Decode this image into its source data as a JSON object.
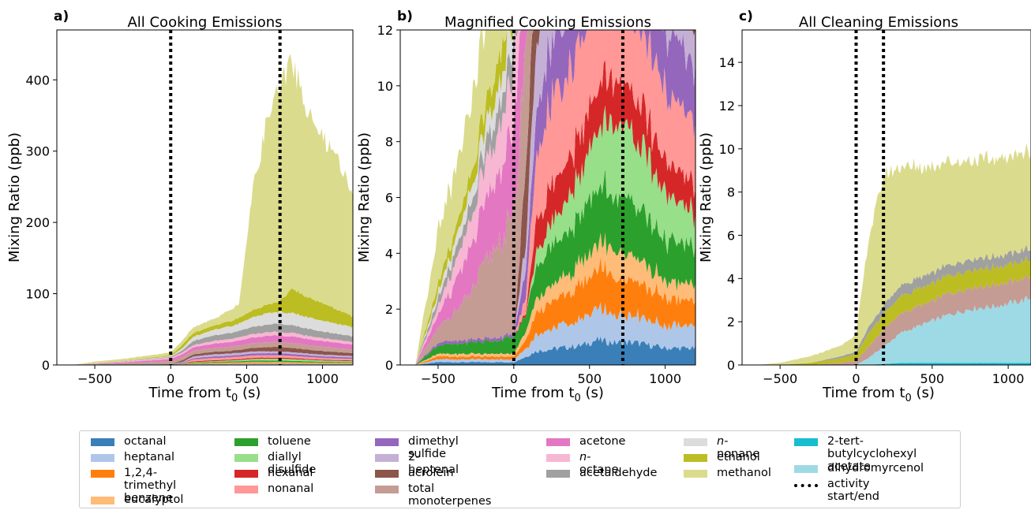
{
  "panels": [
    {
      "letter": "a)",
      "title": "All Cooking Emissions",
      "xlabel": "Time from t",
      "xlabel_sub": "0",
      "xlabel_unit": " (s)",
      "ylabel": "Mixing Ratio (ppb)",
      "xlim": [
        -750,
        1200
      ],
      "ylim": [
        0,
        470
      ],
      "xticks": [
        -500,
        0,
        500,
        1000
      ],
      "yticks": [
        0,
        100,
        200,
        300,
        400
      ],
      "activity_lines": [
        0,
        720
      ]
    },
    {
      "letter": "b)",
      "title": "Magnified Cooking Emissions",
      "xlabel": "Time from t",
      "xlabel_sub": "0",
      "xlabel_unit": " (s)",
      "ylabel": "Mixing Ratio (ppb)",
      "xlim": [
        -750,
        1200
      ],
      "ylim": [
        0,
        12
      ],
      "xticks": [
        -500,
        0,
        500,
        1000
      ],
      "yticks": [
        0,
        2,
        4,
        6,
        8,
        10,
        12
      ],
      "activity_lines": [
        0,
        720
      ]
    },
    {
      "letter": "c)",
      "title": "All Cleaning Emissions",
      "xlabel": "Time from t",
      "xlabel_sub": "0",
      "xlabel_unit": " (s)",
      "ylabel": "Mixing Ratio (ppb)",
      "xlim": [
        -750,
        1150
      ],
      "ylim": [
        0,
        15.5
      ],
      "xticks": [
        -500,
        0,
        500,
        1000
      ],
      "yticks": [
        0,
        2,
        4,
        6,
        8,
        10,
        12,
        14
      ],
      "activity_lines": [
        0,
        180
      ]
    }
  ],
  "legend": [
    [
      {
        "label": "octanal",
        "color": "#3a7fb8"
      },
      {
        "label": "heptanal",
        "color": "#aec7e8"
      },
      {
        "label": "1,2,4-trimethyl\nbenzene",
        "color": "#ff7f0e"
      },
      {
        "label": "eucalyptol",
        "color": "#ffbb78"
      }
    ],
    [
      {
        "label": "toluene",
        "color": "#2ca02c"
      },
      {
        "label": "diallyl disulfide",
        "color": "#98df8a"
      },
      {
        "label": "hexanal",
        "color": "#d62728"
      },
      {
        "label": "nonanal",
        "color": "#ff9896"
      }
    ],
    [
      {
        "label": "dimethyl sulfide",
        "color": "#9467bd"
      },
      {
        "label": "2-heptenal",
        "color": "#c5b0d5"
      },
      {
        "label": "acrolein",
        "color": "#8c564b"
      },
      {
        "label": "total monoterpenes",
        "color": "#c49c94"
      }
    ],
    [
      {
        "label": "acetone",
        "color": "#e377c2"
      },
      {
        "label": "n-octane",
        "color": "#f7b6d2",
        "italic_prefix": "n"
      },
      {
        "label": "acetaldehyde",
        "color": "#a0a0a0"
      }
    ],
    [
      {
        "label": "n-nonane",
        "color": "#dcdcdc",
        "italic_prefix": "n"
      },
      {
        "label": "ethanol",
        "color": "#bcbd22"
      },
      {
        "label": "methanol",
        "color": "#dbdb8d"
      }
    ],
    [
      {
        "label": "2-tert-butylcyclohexyl\nacetate",
        "color": "#17becf"
      },
      {
        "label": "dihydromyrcenol",
        "color": "#9edae5"
      },
      {
        "label": "activity start/end",
        "color": "#000000",
        "dashed": true
      }
    ]
  ],
  "chart_data": [
    {
      "type": "area",
      "title": "All Cooking Emissions",
      "xlabel": "Time from t0 (s)",
      "ylabel": "Mixing Ratio (ppb)",
      "xlim": [
        -750,
        1200
      ],
      "ylim": [
        0,
        470
      ],
      "stacked": true,
      "x": [
        -650,
        -500,
        -300,
        -100,
        0,
        80,
        150,
        300,
        450,
        550,
        650,
        720,
        800,
        900,
        1000,
        1100,
        1200
      ],
      "series": [
        {
          "name": "octanal",
          "values": [
            0,
            0.1,
            0.1,
            0.1,
            0.1,
            0.3,
            0.5,
            0.6,
            0.7,
            0.9,
            0.8,
            0.8,
            0.8,
            0.7,
            0.6,
            0.6,
            0.6
          ]
        },
        {
          "name": "heptanal",
          "values": [
            0,
            0.1,
            0.1,
            0.1,
            0.1,
            0.3,
            0.6,
            0.8,
            0.9,
            1.1,
            1.0,
            1.0,
            1.0,
            0.9,
            0.8,
            0.8,
            0.8
          ]
        },
        {
          "name": "1,2,4-trimethyl benzene",
          "values": [
            0,
            0.1,
            0.1,
            0.1,
            0.1,
            0.3,
            0.8,
            1.0,
            1.2,
            1.5,
            1.4,
            1.4,
            1.3,
            1.1,
            1.0,
            0.9,
            0.9
          ]
        },
        {
          "name": "eucalyptol",
          "values": [
            0,
            0.1,
            0.1,
            0.1,
            0.1,
            0.3,
            0.5,
            0.6,
            0.8,
            0.9,
            0.9,
            0.9,
            0.8,
            0.7,
            0.6,
            0.6,
            0.6
          ]
        },
        {
          "name": "toluene",
          "values": [
            0,
            0.3,
            0.4,
            0.5,
            0.6,
            0.6,
            1.2,
            1.5,
            1.7,
            2.0,
            2.0,
            2.0,
            1.9,
            1.7,
            1.5,
            1.4,
            1.3
          ]
        },
        {
          "name": "diallyl disulfide",
          "values": [
            0,
            0,
            0,
            0,
            0,
            0,
            0.5,
            1.0,
            1.5,
            2.2,
            2.6,
            2.7,
            2.4,
            2.0,
            1.7,
            1.4,
            1.2
          ]
        },
        {
          "name": "hexanal",
          "values": [
            0,
            0,
            0,
            0,
            0,
            0.1,
            1.2,
            1.3,
            1.4,
            1.6,
            1.6,
            1.6,
            1.5,
            1.3,
            1.2,
            1.1,
            1.0
          ]
        },
        {
          "name": "nonanal",
          "values": [
            0,
            0,
            0,
            0,
            0,
            0.5,
            2.6,
            3.0,
            3.3,
            3.4,
            3.3,
            3.2,
            3.0,
            2.7,
            2.5,
            2.3,
            2.1
          ]
        },
        {
          "name": "dimethyl sulfide",
          "values": [
            0,
            0.1,
            0.1,
            0.1,
            0.1,
            1.0,
            1.8,
            2.2,
            2.4,
            2.8,
            2.8,
            2.8,
            2.7,
            2.5,
            2.3,
            2.1,
            2.0
          ]
        },
        {
          "name": "2-heptenal",
          "values": [
            0,
            0,
            0,
            0,
            0,
            1.0,
            2.5,
            3.0,
            3.0,
            2.8,
            2.6,
            2.5,
            2.5,
            2.4,
            2.3,
            2.2,
            2.1
          ]
        },
        {
          "name": "acrolein",
          "values": [
            0,
            0,
            0,
            0,
            0,
            2.5,
            3.0,
            3.5,
            4.0,
            5.0,
            6.0,
            6.5,
            6.0,
            5.5,
            5.0,
            4.5,
            4.0
          ]
        },
        {
          "name": "total monoterpenes",
          "values": [
            0,
            0.5,
            1.5,
            3.5,
            4.0,
            4.5,
            5.0,
            5.5,
            6.0,
            6.5,
            7.0,
            7.0,
            7.0,
            6.5,
            6.0,
            5.5,
            5.0
          ]
        },
        {
          "name": "acetone",
          "values": [
            0,
            0.5,
            1.5,
            2.5,
            3.0,
            4.0,
            5.0,
            6.0,
            7.0,
            8.0,
            9.0,
            9.0,
            9.0,
            8.5,
            8.0,
            7.5,
            7.0
          ]
        },
        {
          "name": "n-octane",
          "values": [
            0,
            0.3,
            1.0,
            1.5,
            2.0,
            2.5,
            3.0,
            4.0,
            4.5,
            5.0,
            5.0,
            5.0,
            5.0,
            4.5,
            4.0,
            4.0,
            3.5
          ]
        },
        {
          "name": "acetaldehyde",
          "values": [
            0,
            0.3,
            0.5,
            0.8,
            1.0,
            3.0,
            6.0,
            8.0,
            9.0,
            10.0,
            11.0,
            11.5,
            11.0,
            10.0,
            9.0,
            8.5,
            8.0
          ]
        },
        {
          "name": "n-nonane",
          "values": [
            0,
            0.2,
            0.5,
            0.8,
            1.0,
            3.0,
            6.0,
            8.0,
            10.0,
            14.0,
            16.0,
            17.0,
            17.0,
            16.0,
            15.0,
            14.0,
            13.0
          ]
        },
        {
          "name": "ethanol",
          "values": [
            0,
            0.3,
            0.5,
            1.0,
            1.5,
            5.0,
            5.0,
            6.0,
            8.0,
            10.0,
            12.0,
            15.0,
            35.0,
            28.0,
            25.0,
            20.0,
            15.0
          ]
        },
        {
          "name": "methanol",
          "values": [
            0,
            1.8,
            2.5,
            3.5,
            4.0,
            6.0,
            8.0,
            10.0,
            20.0,
            180.0,
            270.0,
            300.0,
            320.0,
            260.0,
            230.0,
            210.0,
            170.0
          ]
        }
      ]
    },
    {
      "type": "area",
      "title": "Magnified Cooking Emissions",
      "xlabel": "Time from t0 (s)",
      "ylabel": "Mixing Ratio (ppb)",
      "xlim": [
        -750,
        1200
      ],
      "ylim": [
        0,
        12
      ],
      "stacked": true,
      "note_series": "same stacked series as the first panel, y-axis limited to 12 ppb"
    },
    {
      "type": "area",
      "title": "All Cleaning Emissions",
      "xlabel": "Time from t0 (s)",
      "ylabel": "Mixing Ratio (ppb)",
      "xlim": [
        -750,
        1150
      ],
      "ylim": [
        0,
        15.5
      ],
      "stacked": true,
      "x": [
        -650,
        -500,
        -300,
        -100,
        0,
        80,
        180,
        300,
        450,
        600,
        750,
        900,
        1050,
        1150
      ],
      "series": [
        {
          "name": "2-tert-butylcyclohexyl acetate",
          "values": [
            0,
            0,
            0,
            0,
            0,
            0.02,
            0.05,
            0.1,
            0.1,
            0.1,
            0.1,
            0.1,
            0.1,
            0.1
          ]
        },
        {
          "name": "dihydromyrcenol",
          "values": [
            0,
            0,
            0,
            0,
            0,
            0.3,
            0.8,
            1.4,
            1.8,
            2.2,
            2.5,
            2.6,
            2.8,
            3.0
          ]
        },
        {
          "name": "total monoterpenes",
          "values": [
            0,
            0,
            0,
            0.1,
            0.2,
            0.5,
            0.8,
            0.9,
            0.9,
            1.0,
            1.0,
            1.0,
            1.0,
            1.0
          ]
        },
        {
          "name": "ethanol",
          "values": [
            0,
            0,
            0.1,
            0.2,
            0.3,
            0.6,
            0.7,
            0.8,
            0.8,
            0.8,
            0.8,
            0.8,
            0.8,
            0.8
          ]
        },
        {
          "name": "acetaldehyde",
          "values": [
            0,
            0,
            0,
            0.1,
            0.1,
            0.3,
            0.4,
            0.5,
            0.5,
            0.5,
            0.5,
            0.5,
            0.5,
            0.5
          ]
        },
        {
          "name": "methanol",
          "values": [
            0,
            0.1,
            0.3,
            0.5,
            0.8,
            4.0,
            6.0,
            5.5,
            5.0,
            4.8,
            4.6,
            4.5,
            4.5,
            4.5
          ]
        }
      ]
    }
  ]
}
